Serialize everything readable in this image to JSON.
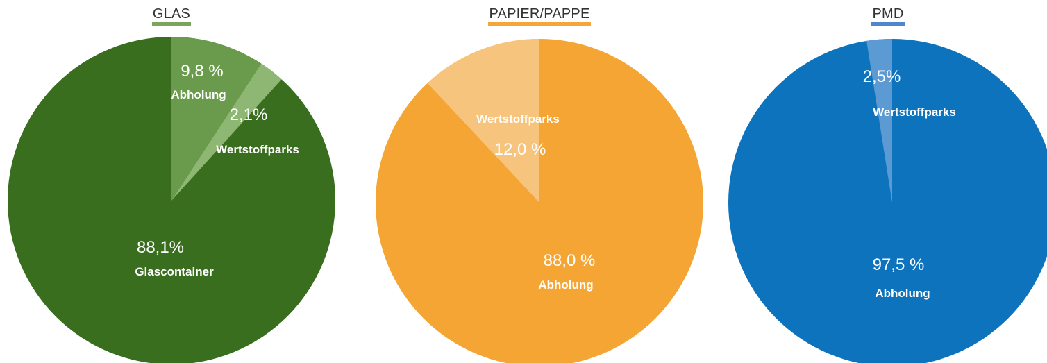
{
  "chart_data": [
    {
      "type": "pie",
      "title": "GLAS",
      "accent": "#7aa55c",
      "base_color": "#3a6e1f",
      "slices": [
        {
          "label": "Abholung",
          "value_text": "9,8 %",
          "value": 9.8,
          "color": "#6a9a4b"
        },
        {
          "label": "Wertstoffparks",
          "value_text": "2,1%",
          "value": 2.1,
          "color": "#8fb774"
        },
        {
          "label": "Glascontainer",
          "value_text": "88,1%",
          "value": 88.1,
          "color": "#3a6e1f"
        }
      ]
    },
    {
      "type": "pie",
      "title": "PAPIER/PAPPE",
      "accent": "#f4a63a",
      "base_color": "#f4a534",
      "slices": [
        {
          "label": "Abholung",
          "value_text": "88,0 %",
          "value": 88.0,
          "color": "#f4a534"
        },
        {
          "label": "Wertstoffparks",
          "value_text": "12,0 %",
          "value": 12.0,
          "color": "#f7c47d"
        }
      ]
    },
    {
      "type": "pie",
      "title": "PMD",
      "accent": "#4f86cc",
      "base_color": "#0d73bd",
      "slices": [
        {
          "label": "Abholung",
          "value_text": "97,5 %",
          "value": 97.5,
          "color": "#0d73bd"
        },
        {
          "label": "Wertstoffparks",
          "value_text": "2,5%",
          "value": 2.5,
          "color": "#5c9ad4"
        }
      ]
    }
  ]
}
